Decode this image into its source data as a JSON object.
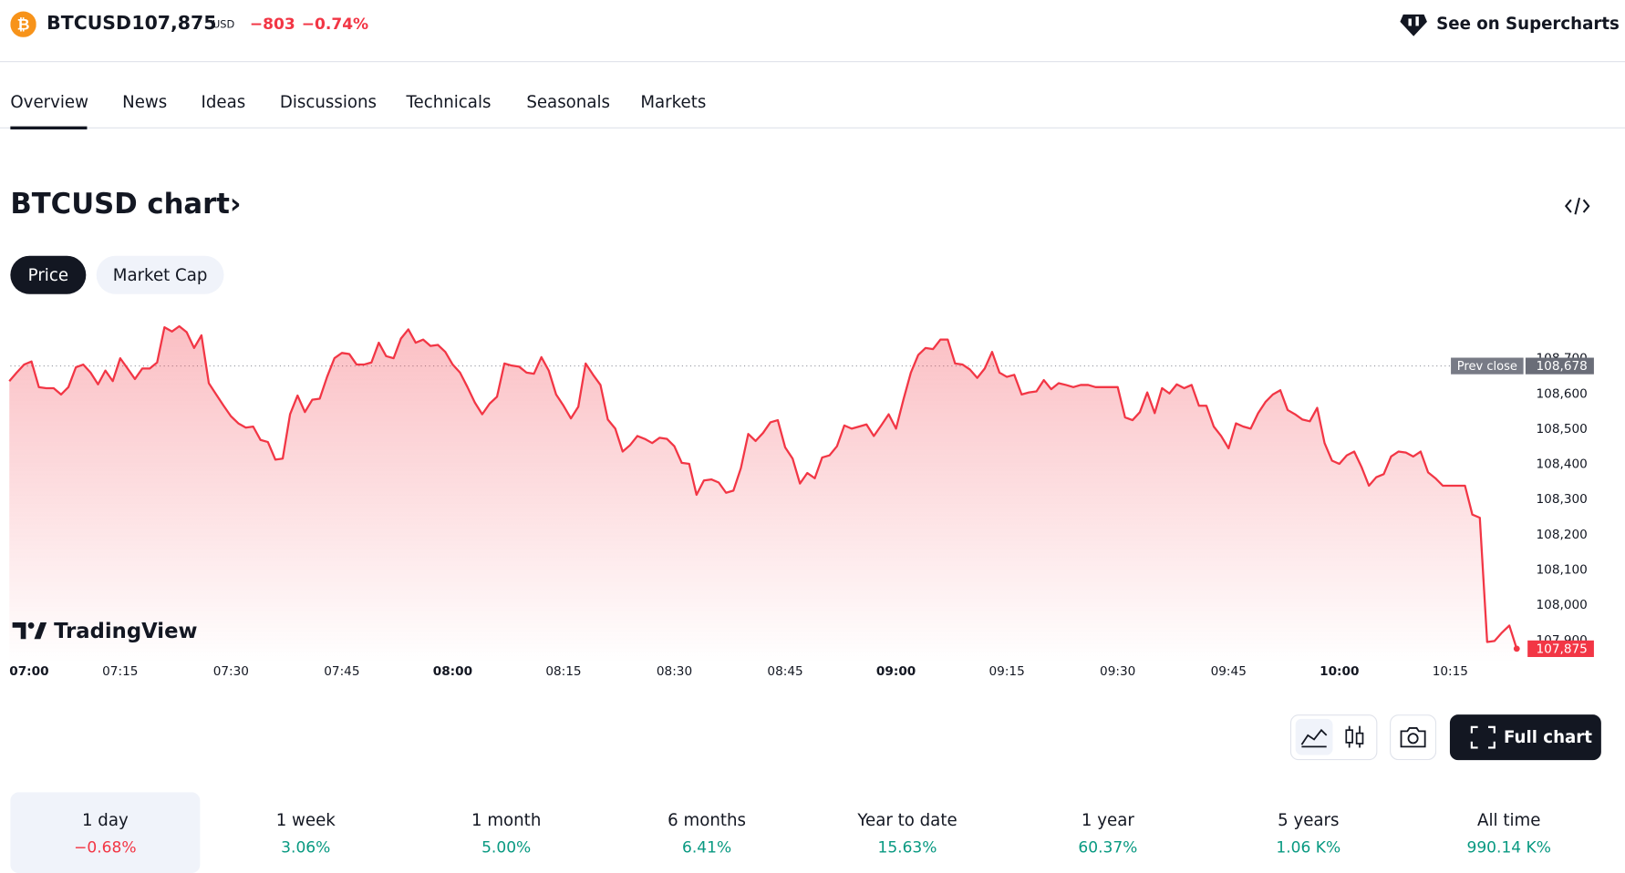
{
  "header": {
    "symbol": "BTCUSD",
    "price": "107,875",
    "currency": "USD",
    "change": "−803",
    "change_pct": "−0.74%",
    "supercharts": "See on Supercharts"
  },
  "tabs": [
    "Overview",
    "News",
    "Ideas",
    "Discussions",
    "Technicals",
    "Seasonals",
    "Markets"
  ],
  "chart_heading": "BTCUSD chart",
  "toggle": [
    "Price",
    "Market Cap"
  ],
  "chart_data": {
    "type": "line",
    "color": "#f23645",
    "logo": "TradingView",
    "x": [
      "07:00",
      "07:01",
      "07:02",
      "07:03",
      "07:04",
      "07:05",
      "07:06",
      "07:07",
      "07:08",
      "07:09",
      "07:10",
      "07:11",
      "07:12",
      "07:13",
      "07:14",
      "07:15",
      "07:16",
      "07:17",
      "07:18",
      "07:19",
      "07:20",
      "07:21",
      "07:22",
      "07:23",
      "07:24",
      "07:25",
      "07:26",
      "07:27",
      "07:28",
      "07:29",
      "07:30",
      "07:31",
      "07:32",
      "07:33",
      "07:34",
      "07:35",
      "07:36",
      "07:37",
      "07:38",
      "07:39",
      "07:40",
      "07:41",
      "07:42",
      "07:43",
      "07:44",
      "07:45",
      "07:46",
      "07:47",
      "07:48",
      "07:49",
      "07:50",
      "07:51",
      "07:52",
      "07:53",
      "07:54",
      "07:55",
      "07:56",
      "07:57",
      "07:58",
      "07:59",
      "08:00",
      "08:01",
      "08:02",
      "08:03",
      "08:04",
      "08:05",
      "08:06",
      "08:07",
      "08:08",
      "08:09",
      "08:10",
      "08:11",
      "08:12",
      "08:13",
      "08:14",
      "08:15",
      "08:16",
      "08:17",
      "08:18",
      "08:19",
      "08:20",
      "08:21",
      "08:22",
      "08:23",
      "08:24",
      "08:25",
      "08:26",
      "08:27",
      "08:28",
      "08:29",
      "08:30",
      "08:31",
      "08:32",
      "08:33",
      "08:34",
      "08:35",
      "08:36",
      "08:37",
      "08:38",
      "08:39",
      "08:40",
      "08:41",
      "08:42",
      "08:43",
      "08:44",
      "08:45",
      "08:46",
      "08:47",
      "08:48",
      "08:49",
      "08:50",
      "08:51",
      "08:52",
      "08:53",
      "08:54",
      "08:55",
      "08:56",
      "08:57",
      "08:58",
      "08:59",
      "09:00",
      "09:01",
      "09:02",
      "09:03",
      "09:04",
      "09:05",
      "09:06",
      "09:07",
      "09:08",
      "09:09",
      "09:10",
      "09:11",
      "09:12",
      "09:13",
      "09:14",
      "09:15",
      "09:16",
      "09:17",
      "09:18",
      "09:19",
      "09:20",
      "09:21",
      "09:22",
      "09:23",
      "09:24",
      "09:25",
      "09:26",
      "09:27",
      "09:28",
      "09:29",
      "09:30",
      "09:31",
      "09:32",
      "09:33",
      "09:34",
      "09:35",
      "09:36",
      "09:37",
      "09:38",
      "09:39",
      "09:40",
      "09:41",
      "09:42",
      "09:43",
      "09:44",
      "09:45",
      "09:46",
      "09:47",
      "09:48",
      "09:49",
      "09:50",
      "09:51",
      "09:52",
      "09:53",
      "09:54",
      "09:55",
      "09:56",
      "09:57",
      "09:58",
      "09:59",
      "10:00",
      "10:01",
      "10:02",
      "10:03",
      "10:04",
      "10:05",
      "10:06",
      "10:07",
      "10:08",
      "10:09",
      "10:10",
      "10:11",
      "10:12",
      "10:13",
      "10:14",
      "10:15",
      "10:16",
      "10:17",
      "10:18",
      "10:19",
      "10:20",
      "10:21",
      "10:22",
      "10:23",
      "10:24"
    ],
    "values": [
      108635,
      108659,
      108682,
      108691,
      108618,
      108615,
      108615,
      108597,
      108618,
      108674,
      108682,
      108659,
      108626,
      108665,
      108635,
      108700,
      108671,
      108641,
      108671,
      108671,
      108688,
      108788,
      108776,
      108791,
      108774,
      108729,
      108765,
      108629,
      108597,
      108565,
      108535,
      108515,
      108503,
      108506,
      108468,
      108462,
      108412,
      108415,
      108541,
      108594,
      108547,
      108582,
      108585,
      108647,
      108700,
      108715,
      108712,
      108682,
      108682,
      108688,
      108744,
      108706,
      108700,
      108756,
      108782,
      108744,
      108753,
      108735,
      108738,
      108718,
      108682,
      108659,
      108618,
      108574,
      108541,
      108571,
      108591,
      108685,
      108679,
      108676,
      108659,
      108656,
      108703,
      108665,
      108597,
      108565,
      108529,
      108562,
      108685,
      108653,
      108624,
      108526,
      108500,
      108435,
      108453,
      108479,
      108471,
      108459,
      108474,
      108471,
      108450,
      108403,
      108400,
      108312,
      108353,
      108356,
      108347,
      108318,
      108324,
      108388,
      108485,
      108465,
      108488,
      108518,
      108524,
      108447,
      108415,
      108344,
      108374,
      108359,
      108418,
      108424,
      108450,
      108509,
      108500,
      108506,
      108512,
      108479,
      108509,
      108541,
      108500,
      108582,
      108659,
      108709,
      108729,
      108726,
      108753,
      108753,
      108685,
      108682,
      108668,
      108644,
      108671,
      108718,
      108659,
      108647,
      108653,
      108597,
      108603,
      108606,
      108638,
      108612,
      108629,
      108624,
      108618,
      108624,
      108624,
      108618,
      108618,
      108618,
      108618,
      108532,
      108524,
      108547,
      108603,
      108544,
      108615,
      108600,
      108626,
      108615,
      108624,
      108565,
      108565,
      108506,
      108479,
      108444,
      108515,
      108506,
      108500,
      108544,
      108576,
      108597,
      108609,
      108553,
      108541,
      108526,
      108521,
      108559,
      108459,
      108409,
      108400,
      108424,
      108435,
      108391,
      108338,
      108362,
      108371,
      108421,
      108435,
      108432,
      108421,
      108435,
      108376,
      108359,
      108338,
      108338,
      108338,
      108338,
      108256,
      108247,
      107894,
      107897,
      107921,
      107941,
      107875
    ],
    "xticks": [
      "07:00",
      "07:15",
      "07:30",
      "07:45",
      "08:00",
      "08:15",
      "08:30",
      "08:45",
      "09:00",
      "09:15",
      "09:30",
      "09:45",
      "10:00",
      "10:15"
    ],
    "ylim": [
      107835,
      108835
    ],
    "yticks": [
      {
        "value": 107900,
        "label": "107,900"
      },
      {
        "value": 108000,
        "label": "108,000"
      },
      {
        "value": 108100,
        "label": "108,100"
      },
      {
        "value": 108200,
        "label": "108,200"
      },
      {
        "value": 108300,
        "label": "108,300"
      },
      {
        "value": 108400,
        "label": "108,400"
      },
      {
        "value": 108500,
        "label": "108,500"
      },
      {
        "value": 108600,
        "label": "108,600"
      },
      {
        "value": 108700,
        "label": "108,700"
      }
    ],
    "prev_close": {
      "label": "Prev close",
      "value": 108678,
      "value_label": "108,678"
    },
    "last_label": "107,875",
    "grid": false
  },
  "full_chart": "Full chart",
  "periods": [
    {
      "label": "1 day",
      "change": "−0.68%"
    },
    {
      "label": "1 week",
      "change": "3.06%"
    },
    {
      "label": "1 month",
      "change": "5.00%"
    },
    {
      "label": "6 months",
      "change": "6.41%"
    },
    {
      "label": "Year to date",
      "change": "15.63%"
    },
    {
      "label": "1 year",
      "change": "60.37%"
    },
    {
      "label": "5 years",
      "change": "1.06 K%"
    },
    {
      "label": "All time",
      "change": "990.14 K%"
    }
  ]
}
